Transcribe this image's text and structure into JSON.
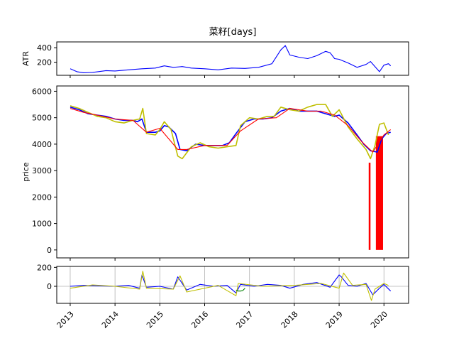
{
  "chart_data": [
    {
      "type": "line",
      "panel": "atr",
      "title": "菜籽[days]",
      "ylabel": "ATR",
      "ylim": [
        20,
        480
      ],
      "yticks": [
        200,
        400
      ],
      "series": [
        {
          "name": "ATR",
          "color": "#0000ff",
          "x": [
            2013.0,
            2013.15,
            2013.3,
            2013.5,
            2013.8,
            2014.0,
            2014.3,
            2014.6,
            2014.9,
            2015.1,
            2015.3,
            2015.5,
            2015.7,
            2016.0,
            2016.3,
            2016.6,
            2016.9,
            2017.2,
            2017.5,
            2017.7,
            2017.8,
            2017.9,
            2018.1,
            2018.3,
            2018.5,
            2018.7,
            2018.8,
            2018.9,
            2019.0,
            2019.2,
            2019.4,
            2019.6,
            2019.7,
            2019.8,
            2019.9,
            2020.0,
            2020.1,
            2020.15
          ],
          "y": [
            110,
            70,
            55,
            60,
            85,
            80,
            95,
            110,
            120,
            150,
            130,
            140,
            120,
            110,
            95,
            120,
            115,
            130,
            180,
            370,
            430,
            300,
            270,
            250,
            290,
            350,
            330,
            250,
            240,
            190,
            130,
            170,
            210,
            140,
            70,
            160,
            180,
            150
          ]
        }
      ]
    },
    {
      "type": "line",
      "panel": "price",
      "ylabel": "price",
      "ylim": [
        -300,
        6200
      ],
      "yticks": [
        0,
        1000,
        2000,
        3000,
        4000,
        5000,
        6000
      ],
      "series": [
        {
          "name": "price-blue",
          "color": "#0000ff",
          "x": [
            2013.0,
            2013.2,
            2013.4,
            2013.6,
            2013.8,
            2014.0,
            2014.2,
            2014.4,
            2014.5,
            2014.6,
            2014.7,
            2014.9,
            2015.0,
            2015.1,
            2015.2,
            2015.35,
            2015.45,
            2015.6,
            2015.8,
            2016.0,
            2016.2,
            2016.4,
            2016.55,
            2016.7,
            2016.9,
            2017.1,
            2017.3,
            2017.5,
            2017.7,
            2017.9,
            2018.1,
            2018.3,
            2018.5,
            2018.7,
            2018.9,
            2019.0,
            2019.2,
            2019.4,
            2019.55,
            2019.7,
            2019.85,
            2019.95,
            2020.05,
            2020.15
          ],
          "y": [
            5400,
            5300,
            5150,
            5100,
            5050,
            4950,
            4900,
            4900,
            4850,
            4950,
            4450,
            4450,
            4500,
            4700,
            4650,
            4400,
            3800,
            3750,
            4000,
            3950,
            3950,
            3950,
            4050,
            4400,
            4850,
            4950,
            4950,
            5000,
            5250,
            5350,
            5250,
            5250,
            5250,
            5150,
            5050,
            5100,
            4800,
            4350,
            4000,
            3750,
            3700,
            4200,
            4400,
            4450
          ]
        },
        {
          "name": "price-yellow",
          "color": "#bfbf00",
          "x": [
            2013.0,
            2013.2,
            2013.4,
            2013.6,
            2013.8,
            2014.0,
            2014.2,
            2014.4,
            2014.55,
            2014.62,
            2014.7,
            2014.9,
            2015.0,
            2015.1,
            2015.25,
            2015.4,
            2015.5,
            2015.7,
            2015.9,
            2016.1,
            2016.3,
            2016.5,
            2016.7,
            2016.8,
            2017.0,
            2017.2,
            2017.4,
            2017.55,
            2017.7,
            2017.9,
            2018.1,
            2018.3,
            2018.5,
            2018.7,
            2018.85,
            2019.0,
            2019.2,
            2019.4,
            2019.6,
            2019.7,
            2019.8,
            2019.9,
            2020.0,
            2020.1
          ],
          "y": [
            5450,
            5350,
            5200,
            5050,
            5000,
            4850,
            4800,
            4900,
            4950,
            5350,
            4400,
            4350,
            4550,
            4850,
            4550,
            3550,
            3450,
            3900,
            4050,
            3900,
            3850,
            3900,
            3950,
            4700,
            5000,
            4950,
            5050,
            5050,
            5400,
            5300,
            5250,
            5400,
            5500,
            5500,
            5050,
            5300,
            4650,
            4200,
            3800,
            3450,
            3950,
            4750,
            4800,
            4350
          ]
        },
        {
          "name": "price-red",
          "color": "#ff0000",
          "x": [
            2013.0,
            2013.3,
            2013.6,
            2014.0,
            2014.4,
            2014.7,
            2015.0,
            2015.4,
            2015.6,
            2016.0,
            2016.5,
            2016.8,
            2017.2,
            2017.6,
            2017.9,
            2018.3,
            2018.6,
            2018.9,
            2019.2,
            2019.5,
            2019.75,
            2020.0,
            2020.15
          ],
          "y": [
            5350,
            5200,
            5100,
            4950,
            4900,
            4450,
            4600,
            3800,
            3800,
            3950,
            3950,
            4500,
            4950,
            5000,
            5350,
            5250,
            5250,
            5100,
            4700,
            4100,
            3700,
            4350,
            4550
          ]
        }
      ],
      "bars": [
        {
          "color": "#ff0000",
          "x0": 2019.66,
          "x1": 2019.7,
          "y0": 0,
          "y1": 3300
        },
        {
          "color": "#ff0000",
          "x0": 2019.82,
          "x1": 2019.98,
          "y0": 0,
          "y1": 4300
        }
      ]
    },
    {
      "type": "line",
      "panel": "oscillator",
      "ylim": [
        -180,
        210
      ],
      "yticks": [
        0,
        200
      ],
      "xticks": [
        "2013",
        "2014",
        "2015",
        "2016",
        "2017",
        "2018",
        "2019",
        "2020"
      ],
      "series": [
        {
          "name": "osc-blue",
          "color": "#0000ff",
          "x": [
            2013.0,
            2013.3,
            2013.6,
            2014.0,
            2014.3,
            2014.55,
            2014.6,
            2014.7,
            2015.0,
            2015.3,
            2015.4,
            2015.6,
            2015.9,
            2016.2,
            2016.5,
            2016.7,
            2016.8,
            2017.1,
            2017.4,
            2017.7,
            2017.9,
            2018.2,
            2018.5,
            2018.8,
            2019.0,
            2019.05,
            2019.2,
            2019.4,
            2019.6,
            2019.75,
            2019.9,
            2020.0,
            2020.15
          ],
          "y": [
            0,
            10,
            5,
            0,
            10,
            -20,
            120,
            -10,
            0,
            -30,
            100,
            -40,
            20,
            0,
            10,
            -70,
            20,
            0,
            20,
            10,
            -20,
            20,
            40,
            -10,
            120,
            100,
            10,
            0,
            30,
            -90,
            -20,
            20,
            -50
          ]
        },
        {
          "name": "osc-yellow",
          "color": "#bfbf00",
          "x": [
            2013.0,
            2013.5,
            2014.0,
            2014.55,
            2014.62,
            2014.7,
            2015.3,
            2015.45,
            2015.6,
            2016.3,
            2016.7,
            2016.75,
            2017.3,
            2018.0,
            2018.6,
            2019.0,
            2019.1,
            2019.3,
            2019.6,
            2019.72,
            2019.8,
            2020.0,
            2020.1
          ],
          "y": [
            -20,
            15,
            0,
            -30,
            160,
            -20,
            -30,
            110,
            -60,
            10,
            -100,
            30,
            0,
            10,
            30,
            -20,
            140,
            10,
            20,
            -150,
            -30,
            30,
            10
          ]
        },
        {
          "name": "osc-green",
          "color": "#007f00",
          "x": [
            2016.7,
            2016.75,
            2016.8,
            2016.85,
            2016.9
          ],
          "y": [
            -40,
            -50,
            -50,
            -45,
            -20
          ]
        }
      ]
    }
  ]
}
